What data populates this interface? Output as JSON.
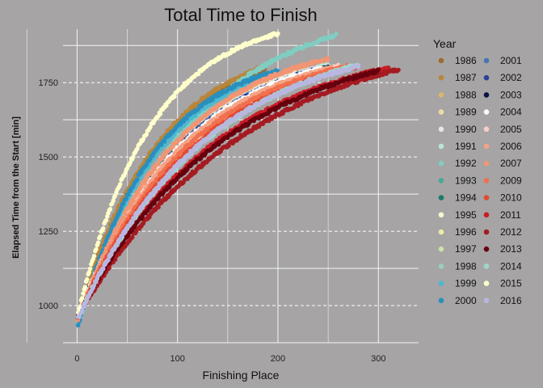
{
  "chart_data": {
    "type": "scatter",
    "title": "Total Time to Finish",
    "xlabel": "Finishing Place",
    "ylabel": "Elapsed Time from the Start [min]",
    "xlim": [
      -14,
      340
    ],
    "ylim": [
      875,
      1930
    ],
    "x_ticks": [
      0,
      100,
      200,
      300
    ],
    "y_ticks": [
      1000,
      1250,
      1500,
      1750
    ],
    "grid": true,
    "legend": {
      "title": "Year",
      "placement": "right"
    },
    "series": [
      {
        "name": "1986",
        "color": "#9c6b2e",
        "n": 187,
        "start": 950,
        "end": 1795,
        "k": 2.2
      },
      {
        "name": "1987",
        "color": "#b8863b",
        "n": 183,
        "start": 960,
        "end": 1800,
        "k": 2.2
      },
      {
        "name": "1988",
        "color": "#d8b76e",
        "n": 220,
        "start": 940,
        "end": 1790,
        "k": 2.3
      },
      {
        "name": "1989",
        "color": "#e9dca6",
        "n": 230,
        "start": 945,
        "end": 1795,
        "k": 2.3
      },
      {
        "name": "1990",
        "color": "#e6e6e6",
        "n": 240,
        "start": 950,
        "end": 1800,
        "k": 2.3
      },
      {
        "name": "1991",
        "color": "#b9e5dc",
        "n": 250,
        "start": 955,
        "end": 1810,
        "k": 2.2
      },
      {
        "name": "1992",
        "color": "#80cdc1",
        "n": 258,
        "start": 930,
        "end": 1910,
        "k": 2.2
      },
      {
        "name": "1993",
        "color": "#4aa79b",
        "n": 240,
        "start": 950,
        "end": 1790,
        "k": 2.3
      },
      {
        "name": "1994",
        "color": "#1b7a6e",
        "n": 235,
        "start": 955,
        "end": 1785,
        "k": 2.3
      },
      {
        "name": "1995",
        "color": "#f7f7d2",
        "n": 240,
        "start": 950,
        "end": 1790,
        "k": 2.2
      },
      {
        "name": "1996",
        "color": "#efeaaa",
        "n": 250,
        "start": 945,
        "end": 1795,
        "k": 2.2
      },
      {
        "name": "1997",
        "color": "#c9e3a8",
        "n": 245,
        "start": 950,
        "end": 1800,
        "k": 2.3
      },
      {
        "name": "1998",
        "color": "#98cfc0",
        "n": 255,
        "start": 955,
        "end": 1805,
        "k": 2.2
      },
      {
        "name": "1999",
        "color": "#4cb9d1",
        "n": 210,
        "start": 925,
        "end": 1790,
        "k": 2.6
      },
      {
        "name": "2000",
        "color": "#2a8fbf",
        "n": 200,
        "start": 920,
        "end": 1790,
        "k": 2.6
      },
      {
        "name": "2001",
        "color": "#4575b4",
        "n": 235,
        "start": 945,
        "end": 1790,
        "k": 2.3
      },
      {
        "name": "2002",
        "color": "#2c3f9a",
        "n": 240,
        "start": 950,
        "end": 1795,
        "k": 2.3
      },
      {
        "name": "2003",
        "color": "#08163e",
        "n": 250,
        "start": 955,
        "end": 1800,
        "k": 2.2
      },
      {
        "name": "2004",
        "color": "#fafafa",
        "n": 245,
        "start": 960,
        "end": 1800,
        "k": 2.3
      },
      {
        "name": "2005",
        "color": "#f8cfc5",
        "n": 260,
        "start": 955,
        "end": 1805,
        "k": 2.2
      },
      {
        "name": "2006",
        "color": "#f4a486",
        "n": 255,
        "start": 950,
        "end": 1800,
        "k": 2.4
      },
      {
        "name": "2007",
        "color": "#f29575",
        "n": 250,
        "start": 945,
        "end": 1830,
        "k": 2.5
      },
      {
        "name": "2009",
        "color": "#f0704f",
        "n": 270,
        "start": 950,
        "end": 1805,
        "k": 2.4
      },
      {
        "name": "2010",
        "color": "#e34a33",
        "n": 280,
        "start": 955,
        "end": 1805,
        "k": 2.3
      },
      {
        "name": "2011",
        "color": "#c81d27",
        "n": 310,
        "start": 960,
        "end": 1800,
        "k": 2.2
      },
      {
        "name": "2012",
        "color": "#a51b22",
        "n": 320,
        "start": 960,
        "end": 1795,
        "k": 1.9
      },
      {
        "name": "2013",
        "color": "#67000d",
        "n": 300,
        "start": 965,
        "end": 1790,
        "k": 2.0
      },
      {
        "name": "2014",
        "color": "#9fd7cc",
        "n": 280,
        "start": 955,
        "end": 1810,
        "k": 2.1
      },
      {
        "name": "2015",
        "color": "#ffffcc",
        "n": 200,
        "start": 960,
        "end": 1915,
        "k": 2.7
      },
      {
        "name": "2016",
        "color": "#b8b7e0",
        "n": 280,
        "start": 950,
        "end": 1805,
        "k": 2.2
      }
    ]
  }
}
